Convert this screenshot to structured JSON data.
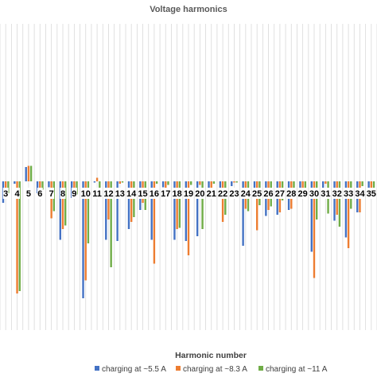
{
  "chart_data": {
    "type": "bar",
    "title": "Voltage harmonics",
    "xlabel": "Harmonic number",
    "ylabel": "",
    "grid": "vertical",
    "legend_position": "bottom",
    "categories": [
      "3",
      "4",
      "5",
      "6",
      "7",
      "8",
      "9",
      "10",
      "11",
      "12",
      "13",
      "14",
      "15",
      "16",
      "17",
      "18",
      "19",
      "20",
      "21",
      "22",
      "23",
      "24",
      "25",
      "26",
      "27",
      "28",
      "29",
      "30",
      "31",
      "32",
      "33",
      "34",
      "35"
    ],
    "ylim": [
      -1.0,
      0.35
    ],
    "series": [
      {
        "name": "charging at ~5.5 A",
        "color": "#4472c4",
        "values": [
          -0.18,
          -0.02,
          0.12,
          -0.1,
          -0.05,
          -0.49,
          -0.14,
          -0.98,
          -0.01,
          -0.49,
          -0.5,
          -0.4,
          -0.24,
          -0.49,
          -0.05,
          -0.49,
          -0.5,
          -0.46,
          -0.1,
          -0.09,
          -0.04,
          -0.54,
          -0.09,
          -0.29,
          -0.28,
          -0.24,
          -0.11,
          -0.59,
          -0.1,
          -0.33,
          -0.47,
          -0.26,
          -0.13
        ]
      },
      {
        "name": "charging at ~8.3 A",
        "color": "#ed7d31",
        "values": [
          -0.14,
          -0.94,
          0.13,
          -0.11,
          -0.31,
          -0.4,
          -0.07,
          -0.83,
          0.03,
          -0.32,
          -0.02,
          -0.34,
          -0.18,
          -0.69,
          -0.08,
          -0.4,
          -0.62,
          -0.03,
          -0.1,
          -0.34,
          -0.01,
          -0.23,
          -0.41,
          -0.24,
          -0.26,
          -0.23,
          -0.09,
          -0.81,
          -0.02,
          -0.28,
          -0.56,
          -0.26,
          -0.12
        ]
      },
      {
        "name": "charging at ~11 A",
        "color": "#70ad47",
        "values": [
          -0.1,
          -0.92,
          0.13,
          -0.07,
          -0.25,
          -0.37,
          -0.11,
          -0.52,
          -0.1,
          -0.72,
          -0.01,
          -0.3,
          -0.24,
          -0.02,
          -0.03,
          -0.39,
          -0.03,
          -0.4,
          -0.02,
          -0.28,
          -0.01,
          -0.25,
          -0.2,
          -0.21,
          -0.16,
          -0.09,
          -0.07,
          -0.32,
          -0.27,
          -0.38,
          -0.23,
          -0.04,
          -0.11
        ]
      }
    ]
  }
}
